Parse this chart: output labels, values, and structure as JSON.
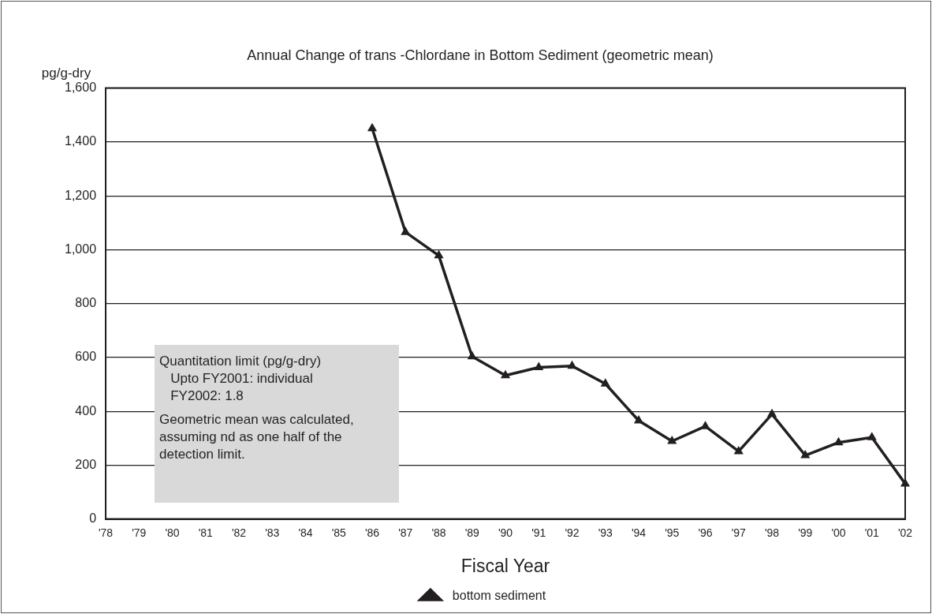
{
  "chart_data": {
    "type": "line",
    "title": "Annual Change of trans -Chlordane in Bottom Sediment (geometric mean)",
    "xlabel": "Fiscal Year",
    "ylabel": "pg/g-dry",
    "categories": [
      "'78",
      "'79",
      "'80",
      "'81",
      "'82",
      "'83",
      "'84",
      "'85",
      "'86",
      "'87",
      "'88",
      "'89",
      "'90",
      "'91",
      "'92",
      "'93",
      "'94",
      "'95",
      "'96",
      "'97",
      "'98",
      "'99",
      "'00",
      "'01",
      "'02"
    ],
    "series": [
      {
        "name": "bottom sediment",
        "color": "#231f20",
        "values": [
          null,
          null,
          null,
          null,
          null,
          null,
          null,
          null,
          1450,
          1065,
          978,
          603,
          533,
          563,
          568,
          502,
          365,
          289,
          344,
          251,
          389,
          236,
          284,
          303,
          131
        ]
      }
    ],
    "ylim": [
      0,
      1600
    ],
    "yticks": [
      {
        "value": 0,
        "label": "0"
      },
      {
        "value": 200,
        "label": "200"
      },
      {
        "value": 400,
        "label": "400"
      },
      {
        "value": 600,
        "label": "600"
      },
      {
        "value": 800,
        "label": "800"
      },
      {
        "value": 1000,
        "label": "1,000"
      },
      {
        "value": 1200,
        "label": "1,200"
      },
      {
        "value": 1400,
        "label": "1,400"
      },
      {
        "value": 1600,
        "label": "1,600"
      }
    ],
    "grid": "y",
    "legend": "bottom",
    "marker": "triangle",
    "line_style": "solid",
    "annotations": [
      "Quantitation limit (pg/g-dry)\n   Upto FY2001: individual\n   FY2002: 1.8",
      "Geometric mean was calculated, assuming nd as one half of the detection limit."
    ]
  }
}
